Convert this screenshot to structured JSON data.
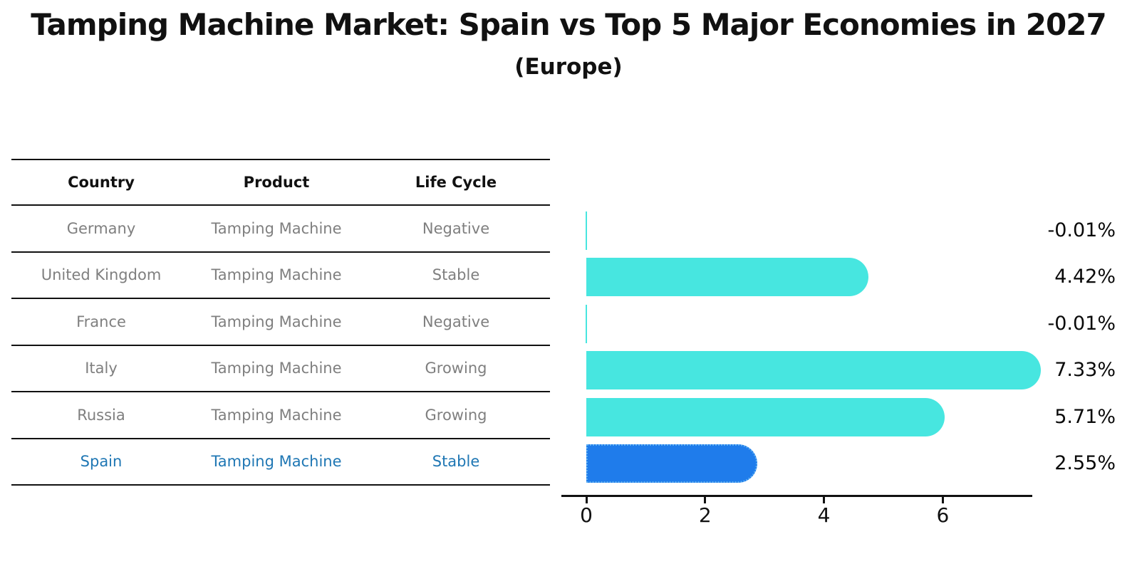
{
  "title": "Tamping Machine Market: Spain vs Top 5 Major Economies in 2027",
  "subtitle": "(Europe)",
  "table": {
    "headers": [
      "Country",
      "Product",
      "Life Cycle"
    ],
    "rows": [
      {
        "country": "Germany",
        "product": "Tamping Machine",
        "life_cycle": "Negative",
        "highlight": false
      },
      {
        "country": "United Kingdom",
        "product": "Tamping Machine",
        "life_cycle": "Stable",
        "highlight": false
      },
      {
        "country": "France",
        "product": "Tamping Machine",
        "life_cycle": "Negative",
        "highlight": false
      },
      {
        "country": "Italy",
        "product": "Tamping Machine",
        "life_cycle": "Growing",
        "highlight": false
      },
      {
        "country": "Russia",
        "product": "Tamping Machine",
        "life_cycle": "Growing",
        "highlight": true
      }
    ],
    "spain_row": {
      "country": "Spain",
      "product": "Tamping Machine",
      "life_cycle": "Stable"
    }
  },
  "chart_data": {
    "type": "bar",
    "orientation": "horizontal",
    "title": "Tamping Machine Market: Spain vs Top 5 Major Economies in 2027",
    "subtitle": "(Europe)",
    "categories": [
      "Germany",
      "United Kingdom",
      "France",
      "Italy",
      "Russia",
      "Spain"
    ],
    "values": [
      -0.01,
      4.42,
      -0.01,
      7.33,
      5.71,
      2.55
    ],
    "value_labels": [
      "-0.01%",
      "4.42%",
      "-0.01%",
      "7.33%",
      "5.71%",
      "2.55%"
    ],
    "x_ticks": [
      0,
      2,
      4,
      6
    ],
    "xlim": [
      -0.45,
      7.5
    ],
    "xlabel": "",
    "ylabel": "",
    "grid": false,
    "legend": "none",
    "bar_color": "#47e6e0",
    "highlight_index": 5,
    "highlight_color": "#1f7ceb",
    "highlight_border": "dotted",
    "axis_color": "#111111",
    "label_color": "#0a0a0a"
  }
}
